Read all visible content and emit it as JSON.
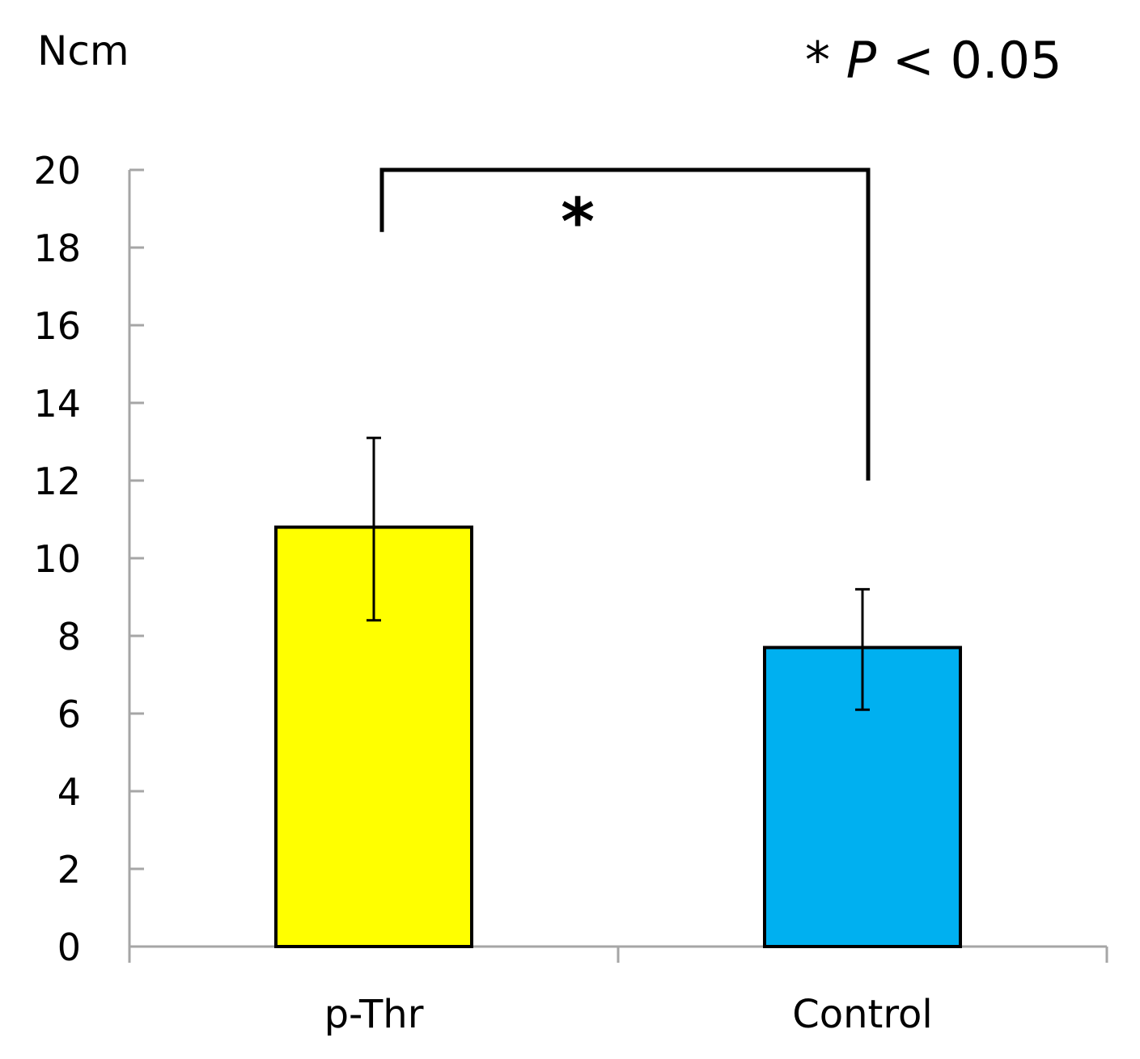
{
  "chart_data": {
    "type": "bar",
    "title": "",
    "unit_label": "Ncm",
    "xlabel": "",
    "ylabel": "Ncm",
    "categories": [
      "p-Thr",
      "Control"
    ],
    "values": [
      10.8,
      7.7
    ],
    "error_bars": {
      "lower": [
        8.4,
        6.1
      ],
      "upper": [
        13.1,
        9.2
      ]
    },
    "colors": [
      "#ffff00",
      "#00b0f0"
    ],
    "ylim": [
      0,
      20
    ],
    "yticks": [
      "0",
      "2",
      "4",
      "6",
      "8",
      "10",
      "12",
      "14",
      "16",
      "18",
      "20"
    ],
    "grid": false,
    "significance": {
      "marker": "*",
      "bracket_top": 20,
      "left_drop_to": 18.4,
      "right_drop_to": 12,
      "legend": {
        "marker": "*",
        "variable": "P",
        "relation": "< 0.05"
      }
    }
  }
}
